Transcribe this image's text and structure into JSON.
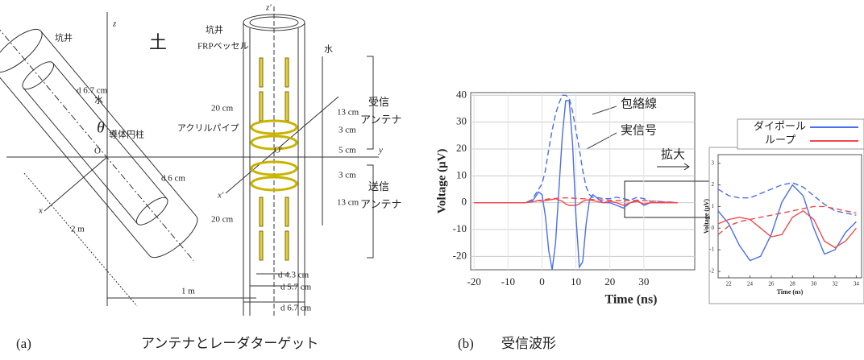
{
  "figure_a": {
    "labels": [
      "z",
      "土",
      "坑井",
      "d 6.7 cm",
      "水",
      "導体円柱",
      "θ",
      "O",
      "d 6 cm",
      "x",
      "2 m",
      "z'",
      "坑井",
      "FRPベッセル",
      "水",
      "20 cm",
      "受信",
      "アンテナ",
      "13 cm",
      "アクリルパイプ",
      "3 cm",
      "O'",
      "5 cm",
      "y",
      "3 cm",
      "x'",
      "13 cm",
      "送信",
      "アンテナ",
      "20 cm",
      "d 4.3 cm",
      "d 5.7 cm",
      "1 m",
      "d 6.7 cm"
    ]
  },
  "chart_data": [
    {
      "type": "line",
      "xlabel": "Time (ns)",
      "ylabel": "Voltage (μV)",
      "annotations": [
        "包絡線",
        "実信号",
        "拡大"
      ],
      "x": [
        -20,
        -15,
        -10,
        -5,
        -3,
        -2,
        -1,
        0,
        1,
        2,
        3,
        4,
        5,
        6,
        7,
        8,
        9,
        10,
        11,
        12,
        13,
        14,
        15,
        16,
        18,
        20,
        22,
        24,
        26,
        28,
        30,
        32,
        34,
        36,
        38,
        40
      ],
      "xlim": [
        -21,
        45
      ],
      "ylim": [
        -25,
        41
      ],
      "xticks": [
        -20,
        -10,
        0,
        10,
        20,
        30
      ],
      "yticks": [
        -20,
        -10,
        0,
        10,
        20,
        30,
        40
      ],
      "grid": true,
      "series": [
        {
          "name": "ダイポール",
          "color": "#4a6ef0",
          "values": [
            0,
            0,
            0,
            0,
            0.5,
            2,
            4,
            3,
            -5,
            -18,
            -25,
            -15,
            5,
            25,
            38,
            38,
            22,
            -5,
            -24,
            -22,
            -8,
            1,
            3,
            2,
            0,
            0,
            -1,
            -2,
            0,
            1,
            -1,
            0,
            0,
            0,
            0,
            0
          ],
          "envelope": [
            0,
            0,
            0,
            0,
            1,
            3,
            5,
            7,
            12,
            20,
            27,
            33,
            37,
            40,
            40,
            39,
            34,
            27,
            20,
            12,
            6,
            3,
            2,
            2,
            1.5,
            1.5,
            2,
            1.5,
            1,
            2,
            1.5,
            0.5,
            0.5,
            0.3,
            0.2,
            0
          ]
        },
        {
          "name": "ループ",
          "color": "#f04a4a",
          "values": [
            0,
            0,
            0,
            0,
            0.3,
            0.5,
            0.8,
            0.5,
            0.8,
            1,
            1.2,
            1.5,
            1,
            0.5,
            -0.5,
            -1,
            -1,
            -1,
            -0.5,
            0.5,
            1,
            1,
            0.8,
            0.5,
            0,
            0.5,
            0,
            -1,
            0,
            0.5,
            -0.5,
            0,
            0,
            0,
            0,
            0
          ],
          "envelope": [
            0,
            0,
            0,
            0,
            0.4,
            0.6,
            0.8,
            1,
            1.2,
            1.4,
            1.5,
            1.6,
            1.7,
            1.8,
            1.8,
            1.8,
            1.7,
            1.6,
            1.5,
            1.5,
            1.4,
            1.3,
            1.2,
            1.1,
            1,
            0.9,
            0.8,
            0.8,
            0.8,
            0.9,
            0.8,
            0.6,
            0.5,
            0.3,
            0.2,
            0
          ]
        }
      ]
    },
    {
      "type": "line",
      "xlabel": "Time (ns)",
      "ylabel": "Voltage (μV)",
      "x": [
        21,
        22,
        23,
        24,
        25,
        26,
        27,
        28,
        29,
        30,
        31,
        32,
        33,
        34
      ],
      "xlim": [
        21,
        34.5
      ],
      "ylim": [
        -2.3,
        3.4
      ],
      "xticks": [
        22,
        24,
        26,
        28,
        30,
        32,
        34
      ],
      "yticks": [
        -2,
        -1,
        0,
        1,
        2,
        3
      ],
      "grid": false,
      "series": [
        {
          "color": "#4a6ef0",
          "values": [
            0.8,
            0.2,
            -0.8,
            -1.5,
            -1.3,
            -0.3,
            1.2,
            2,
            1.5,
            0,
            -1.2,
            -1,
            -0.2,
            0.3
          ],
          "envelope": [
            1.8,
            1.5,
            1.4,
            1.4,
            1.6,
            1.8,
            2,
            2.1,
            1.9,
            1.5,
            1.1,
            0.8,
            0.7,
            0.6
          ]
        },
        {
          "color": "#f04a4a",
          "values": [
            0.2,
            0.4,
            0.5,
            0.4,
            0,
            -0.4,
            -0.3,
            0.5,
            0.8,
            0.4,
            -0.6,
            -0.9,
            -0.6,
            0
          ],
          "envelope": [
            -0.3,
            0.1,
            0.3,
            0.4,
            0.5,
            0.6,
            0.7,
            0.8,
            0.9,
            1,
            1,
            0.9,
            0.8,
            0.7
          ]
        }
      ]
    }
  ],
  "captions": {
    "a_label": "(a)",
    "a_text": "アンテナとレーダターゲット",
    "b_label": "(b)",
    "b_text": "受信波形"
  }
}
